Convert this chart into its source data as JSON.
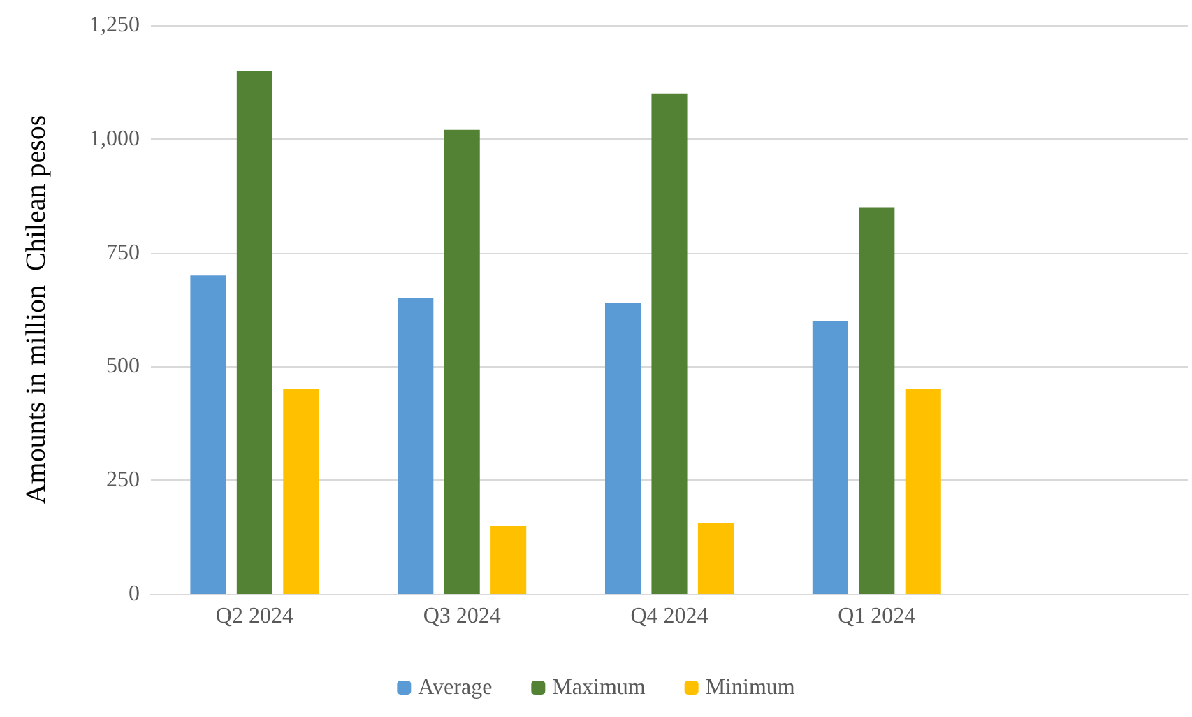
{
  "chart_data": {
    "type": "bar",
    "ylabel": "Amounts in million  Chilean pesos",
    "categories": [
      "Q2 2024",
      "Q3 2024",
      "Q4 2024",
      "Q1 2024",
      null
    ],
    "series": [
      {
        "name": "Average",
        "color": "#5b9bd5",
        "values": [
          700,
          650,
          640,
          600,
          null
        ]
      },
      {
        "name": "Maximum",
        "color": "#548235",
        "values": [
          1150,
          1020,
          1100,
          850,
          null
        ]
      },
      {
        "name": "Minimum",
        "color": "#ffc000",
        "values": [
          450,
          150,
          155,
          450,
          null
        ]
      }
    ],
    "ylim": [
      0,
      1250
    ],
    "yticks": [
      0,
      250,
      500,
      750,
      {
        "value": 1000,
        "label": "1,000"
      },
      {
        "value": 1250,
        "label": "1,250"
      }
    ],
    "grid": "y",
    "legend": "bottom"
  }
}
